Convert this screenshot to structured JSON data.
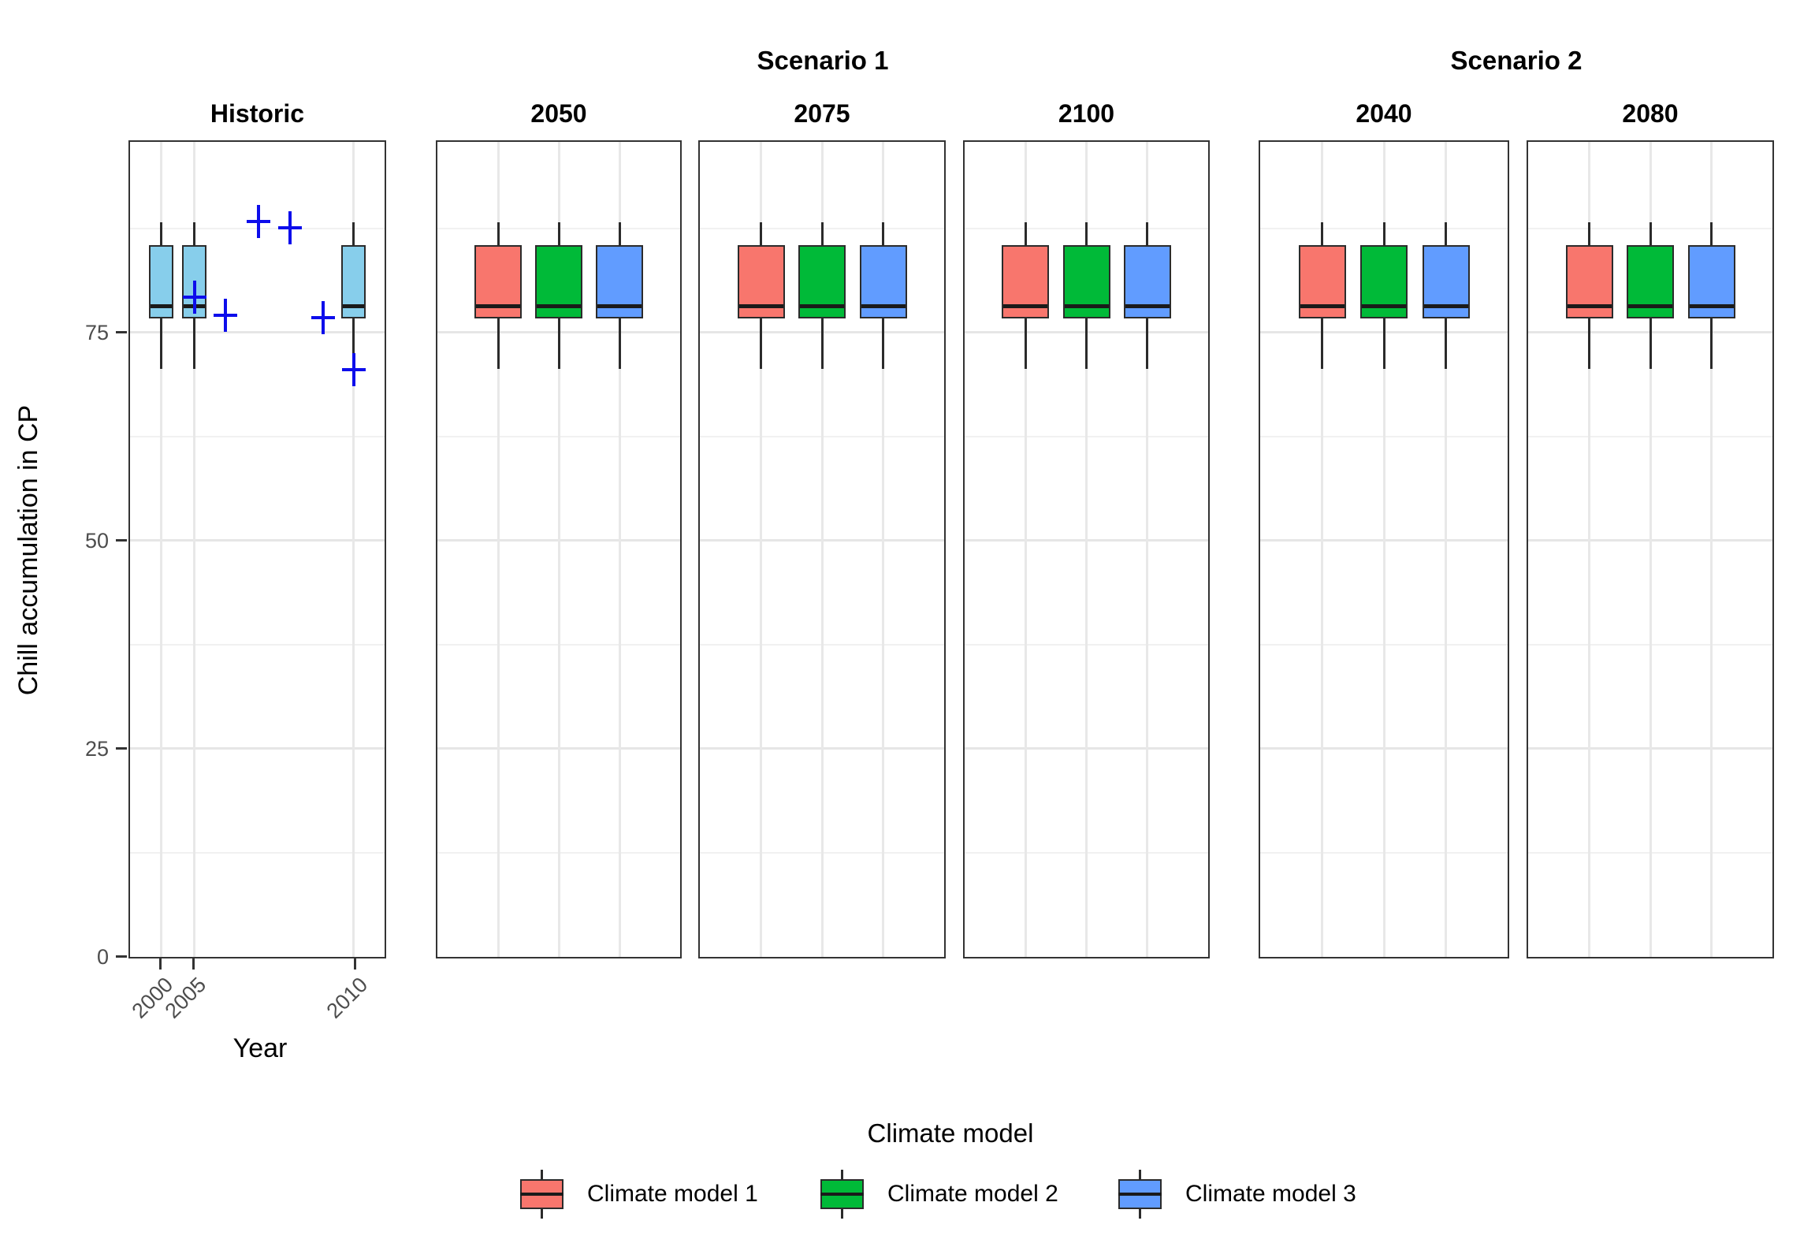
{
  "scenario_headers": [
    {
      "label": "Scenario 1"
    },
    {
      "label": "Scenario 2"
    }
  ],
  "y_axis": {
    "title": "Chill accumulation in CP",
    "tick_labels": [
      "75",
      "50",
      "25",
      "0"
    ],
    "tick_values": [
      75,
      50,
      25,
      0
    ]
  },
  "x_axis": {
    "title": "Year",
    "historic_tick_labels": [
      "2000",
      "2005",
      "2010"
    ]
  },
  "legend": {
    "title": "Climate model",
    "items": [
      {
        "label": "Climate model 1",
        "color": "#F8766D"
      },
      {
        "label": "Climate model 2",
        "color": "#00BA38"
      },
      {
        "label": "Climate model 3",
        "color": "#619CFF"
      }
    ]
  },
  "chart_data": {
    "type": "boxplot",
    "ylabel": "Chill accumulation in CP",
    "xlabel": "Year",
    "ylim": [
      0,
      97.8
    ],
    "grid": true,
    "y_major_gridlines": [
      25,
      50,
      75
    ],
    "y_minor_gridlines": [
      12.5,
      37.5,
      62.5,
      87.5
    ],
    "legend_position": "bottom",
    "historic_fill": "#87CEEB",
    "point_style": {
      "shape": "plus",
      "color": "#0D0DEB"
    },
    "facets": [
      {
        "label": "Historic",
        "group": "",
        "boxes": [
          {
            "x_tick": "2000",
            "x_frac": 0.122,
            "color": "#87CEEB",
            "low": 70.6,
            "q1": 76.7,
            "median": 78.1,
            "q3": 85.5,
            "high": 88.2
          },
          {
            "x_tick": "2005",
            "x_frac": 0.251,
            "color": "#87CEEB",
            "low": 70.6,
            "q1": 76.7,
            "median": 78.1,
            "q3": 85.5,
            "high": 88.2
          },
          {
            "x_tick": "2010",
            "x_frac": 0.878,
            "color": "#87CEEB",
            "low": 68.9,
            "q1": 76.7,
            "median": 78.1,
            "q3": 85.5,
            "high": 88.2
          }
        ],
        "points": [
          {
            "x_frac": 0.505,
            "value": 88.3
          },
          {
            "x_frac": 0.627,
            "value": 87.6
          },
          {
            "x_frac": 0.254,
            "value": 79.2
          },
          {
            "x_frac": 0.376,
            "value": 77.1
          },
          {
            "x_frac": 0.758,
            "value": 76.8
          },
          {
            "x_frac": 0.878,
            "value": 70.5
          }
        ]
      },
      {
        "label": "2050",
        "group": "Scenario 1",
        "boxes": [
          {
            "model": "Climate model 1",
            "x_frac": 0.25,
            "color": "#F8766D",
            "low": 70.6,
            "q1": 76.7,
            "median": 78.1,
            "q3": 85.5,
            "high": 88.2
          },
          {
            "model": "Climate model 2",
            "x_frac": 0.5,
            "color": "#00BA38",
            "low": 70.6,
            "q1": 76.7,
            "median": 78.1,
            "q3": 85.5,
            "high": 88.2
          },
          {
            "model": "Climate model 3",
            "x_frac": 0.75,
            "color": "#619CFF",
            "low": 70.6,
            "q1": 76.7,
            "median": 78.1,
            "q3": 85.5,
            "high": 88.2
          }
        ],
        "points": []
      },
      {
        "label": "2075",
        "group": "Scenario 1",
        "boxes": [
          {
            "model": "Climate model 1",
            "x_frac": 0.25,
            "color": "#F8766D",
            "low": 70.6,
            "q1": 76.7,
            "median": 78.1,
            "q3": 85.5,
            "high": 88.2
          },
          {
            "model": "Climate model 2",
            "x_frac": 0.5,
            "color": "#00BA38",
            "low": 70.6,
            "q1": 76.7,
            "median": 78.1,
            "q3": 85.5,
            "high": 88.2
          },
          {
            "model": "Climate model 3",
            "x_frac": 0.75,
            "color": "#619CFF",
            "low": 70.6,
            "q1": 76.7,
            "median": 78.1,
            "q3": 85.5,
            "high": 88.2
          }
        ],
        "points": []
      },
      {
        "label": "2100",
        "group": "Scenario 1",
        "boxes": [
          {
            "model": "Climate model 1",
            "x_frac": 0.25,
            "color": "#F8766D",
            "low": 70.6,
            "q1": 76.7,
            "median": 78.1,
            "q3": 85.5,
            "high": 88.2
          },
          {
            "model": "Climate model 2",
            "x_frac": 0.5,
            "color": "#00BA38",
            "low": 70.6,
            "q1": 76.7,
            "median": 78.1,
            "q3": 85.5,
            "high": 88.2
          },
          {
            "model": "Climate model 3",
            "x_frac": 0.75,
            "color": "#619CFF",
            "low": 70.6,
            "q1": 76.7,
            "median": 78.1,
            "q3": 85.5,
            "high": 88.2
          }
        ],
        "points": []
      },
      {
        "label": "2040",
        "group": "Scenario 2",
        "boxes": [
          {
            "model": "Climate model 1",
            "x_frac": 0.25,
            "color": "#F8766D",
            "low": 70.6,
            "q1": 76.7,
            "median": 78.1,
            "q3": 85.5,
            "high": 88.2
          },
          {
            "model": "Climate model 2",
            "x_frac": 0.5,
            "color": "#00BA38",
            "low": 70.6,
            "q1": 76.7,
            "median": 78.1,
            "q3": 85.5,
            "high": 88.2
          },
          {
            "model": "Climate model 3",
            "x_frac": 0.75,
            "color": "#619CFF",
            "low": 70.6,
            "q1": 76.7,
            "median": 78.1,
            "q3": 85.5,
            "high": 88.2
          }
        ],
        "points": []
      },
      {
        "label": "2080",
        "group": "Scenario 2",
        "boxes": [
          {
            "model": "Climate model 1",
            "x_frac": 0.25,
            "color": "#F8766D",
            "low": 70.6,
            "q1": 76.7,
            "median": 78.1,
            "q3": 85.5,
            "high": 88.2
          },
          {
            "model": "Climate model 2",
            "x_frac": 0.5,
            "color": "#00BA38",
            "low": 70.6,
            "q1": 76.7,
            "median": 78.1,
            "q3": 85.5,
            "high": 88.2
          },
          {
            "model": "Climate model 3",
            "x_frac": 0.75,
            "color": "#619CFF",
            "low": 70.6,
            "q1": 76.7,
            "median": 78.1,
            "q3": 85.5,
            "high": 88.2
          }
        ],
        "points": []
      }
    ]
  }
}
